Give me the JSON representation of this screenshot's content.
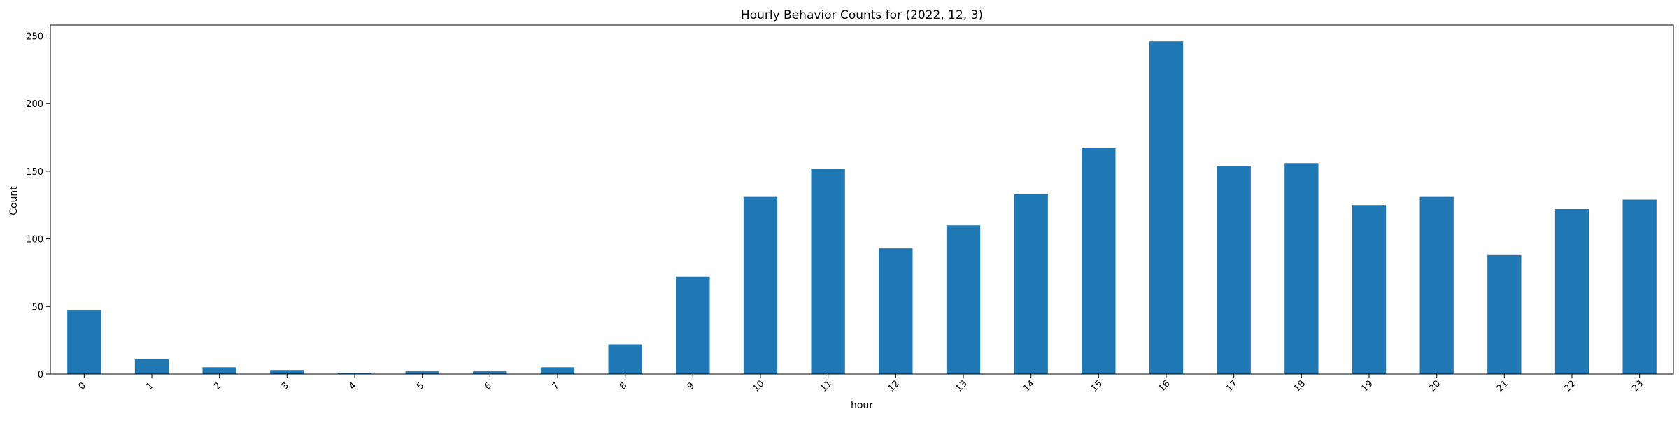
{
  "chart_data": {
    "type": "bar",
    "title": "Hourly Behavior Counts for (2022, 12, 3)",
    "xlabel": "hour",
    "ylabel": "Count",
    "categories": [
      "0",
      "1",
      "2",
      "3",
      "4",
      "5",
      "6",
      "7",
      "8",
      "9",
      "10",
      "11",
      "12",
      "13",
      "14",
      "15",
      "16",
      "17",
      "18",
      "19",
      "20",
      "21",
      "22",
      "23"
    ],
    "values": [
      47,
      11,
      5,
      3,
      1,
      2,
      2,
      5,
      22,
      72,
      131,
      152,
      93,
      110,
      133,
      167,
      246,
      154,
      156,
      125,
      131,
      88,
      122,
      129
    ],
    "ylim": [
      0,
      258
    ],
    "yticks": [
      0,
      50,
      100,
      150,
      200,
      250
    ],
    "grid": false,
    "bar_color": "#1f77b4",
    "x_tick_rotation_deg": 45
  }
}
